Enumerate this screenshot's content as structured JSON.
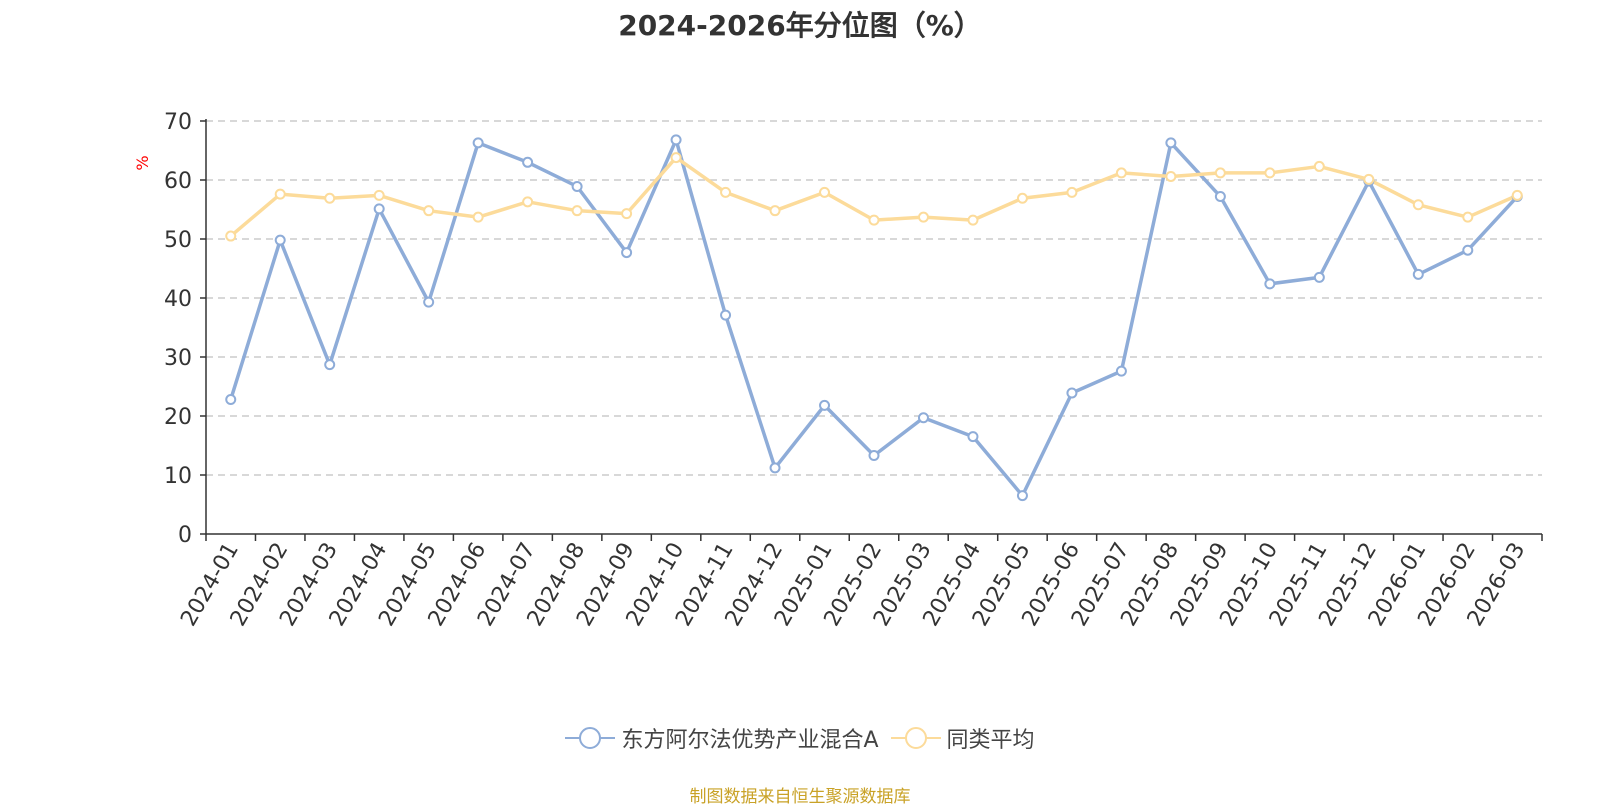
{
  "chart_data": {
    "type": "line",
    "title": "2024-2026年分位图（%）",
    "ylabel": "%",
    "xlabel": "",
    "ylim": [
      0,
      70
    ],
    "yticks": [
      0,
      10,
      20,
      30,
      40,
      50,
      60,
      70
    ],
    "grid": true,
    "legend_position": "bottom",
    "categories": [
      "2024-01",
      "2024-02",
      "2024-03",
      "2024-04",
      "2024-05",
      "2024-06",
      "2024-07",
      "2024-08",
      "2024-09",
      "2024-10",
      "2024-11",
      "2024-12",
      "2025-01",
      "2025-02",
      "2025-03",
      "2025-04",
      "2025-05",
      "2025-06",
      "2025-07",
      "2025-08",
      "2025-09",
      "2025-10",
      "2025-11",
      "2025-12",
      "2026-01",
      "2026-02",
      "2026-03"
    ],
    "series": [
      {
        "name": "东方阿尔法优势产业混合A",
        "color": "#8eacd8",
        "values": [
          22.8,
          49.8,
          28.7,
          55.1,
          39.3,
          66.3,
          63.0,
          58.9,
          47.7,
          66.8,
          37.1,
          11.2,
          21.8,
          13.3,
          19.7,
          16.5,
          6.5,
          23.9,
          27.6,
          66.3,
          57.2,
          42.4,
          43.5,
          59.8,
          44.0,
          48.1,
          57.2
        ]
      },
      {
        "name": "同类平均",
        "color": "#fcdb9a",
        "values": [
          50.5,
          57.6,
          56.9,
          57.4,
          54.8,
          53.7,
          56.3,
          54.8,
          54.3,
          63.8,
          57.9,
          54.8,
          57.9,
          53.2,
          53.7,
          53.2,
          56.9,
          57.9,
          61.2,
          60.6,
          61.2,
          61.2,
          62.3,
          60.1,
          55.8,
          53.7,
          57.4
        ]
      }
    ]
  },
  "source_note": "制图数据来自恒生聚源数据库",
  "colors": {
    "axis": "#333333",
    "grid": "#cccccc",
    "ylabel": "#ff0000",
    "source": "#c9a227"
  }
}
